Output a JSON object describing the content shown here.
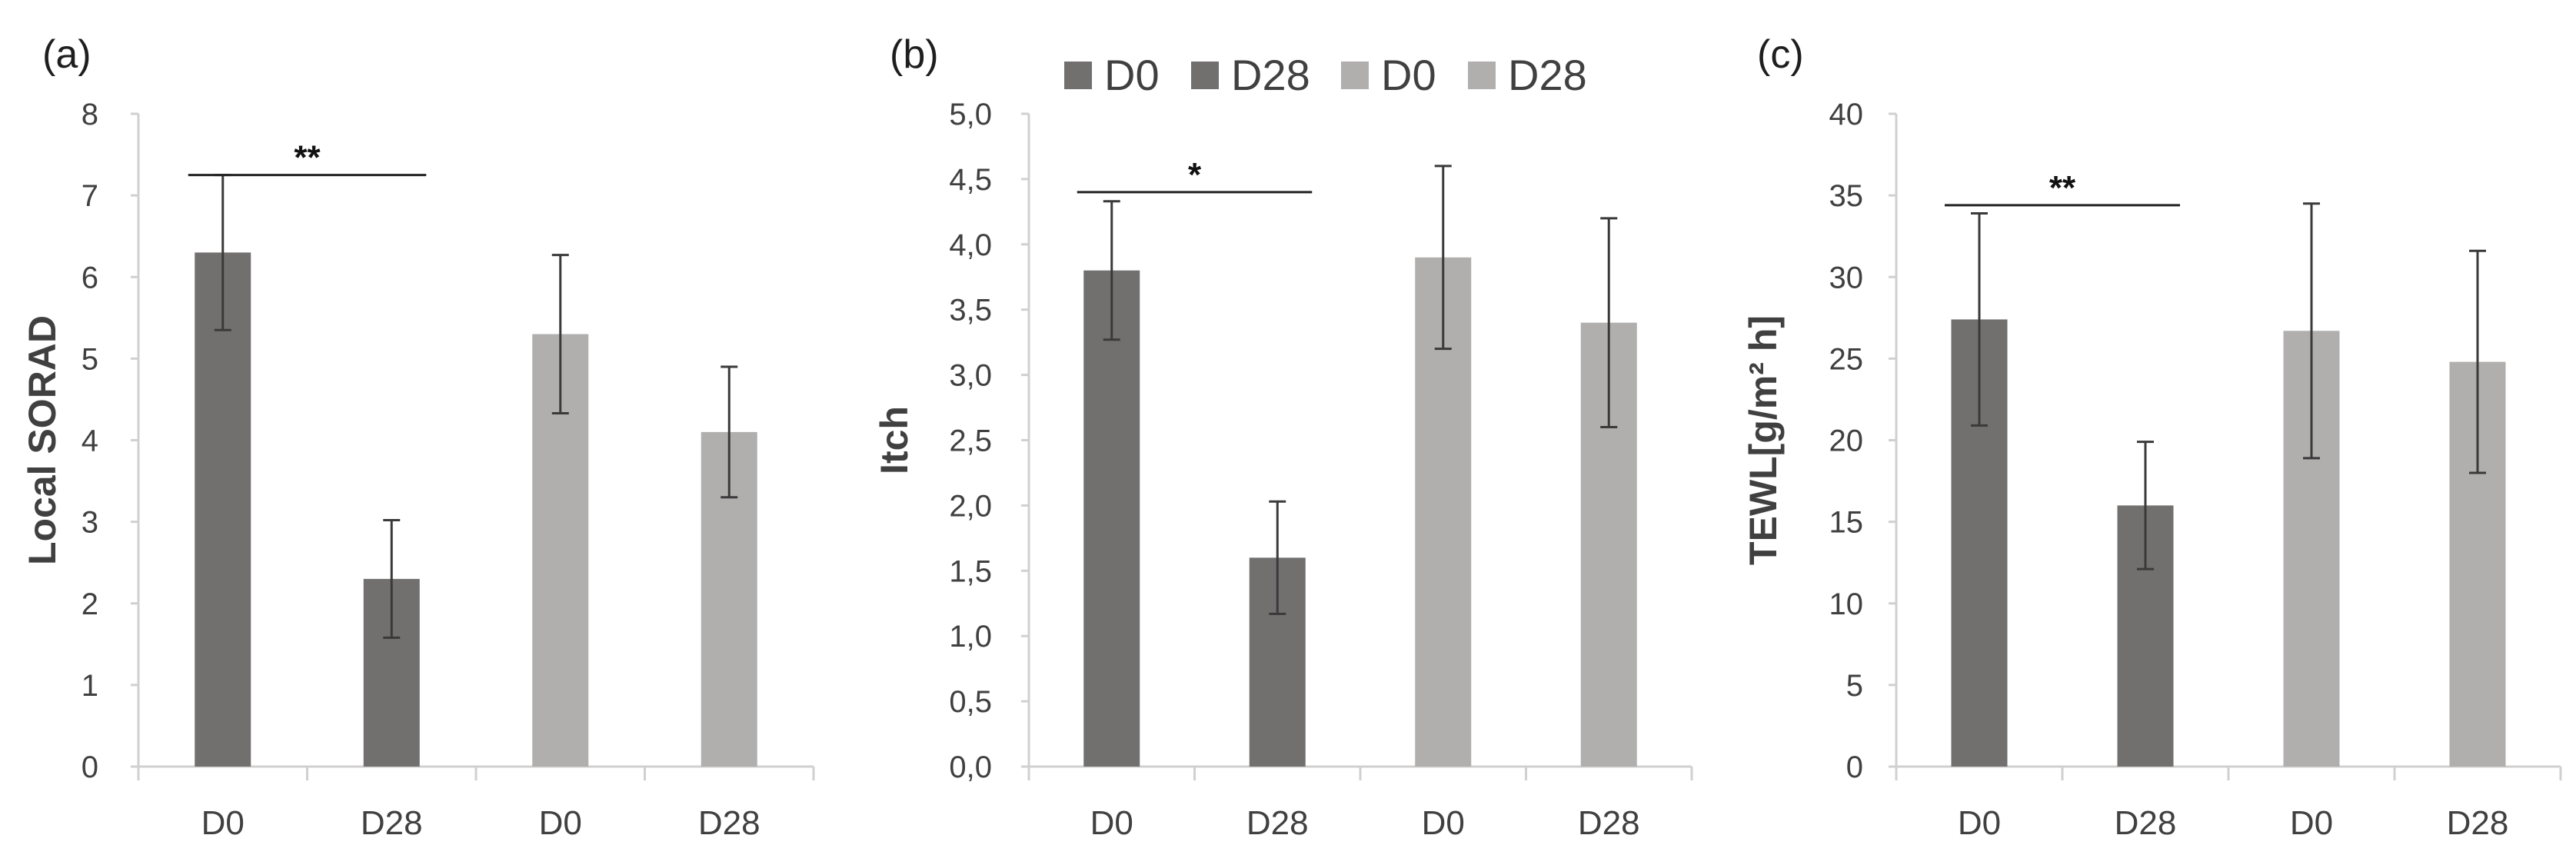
{
  "colors": {
    "dark": "#726f6f",
    "light": "#b1aeae",
    "axis": "#d0d0d0",
    "whisker": "#3a3a3a",
    "text": "#404040",
    "title": "#1e1e1e"
  },
  "legend": [
    {
      "label": "D0",
      "color": "#726f6f"
    },
    {
      "label": "D28",
      "color": "#726f6f"
    },
    {
      "label": "D0",
      "color": "#b1aeae"
    },
    {
      "label": "D28",
      "color": "#b1aeae"
    }
  ],
  "chart_data": [
    {
      "type": "bar",
      "panel_label": "(a)",
      "ylabel": "Local SORAD",
      "categories": [
        "D0",
        "D28",
        "D0",
        "D28"
      ],
      "values": [
        6.3,
        2.3,
        5.3,
        4.1
      ],
      "errors": [
        0.95,
        0.72,
        0.97,
        0.8
      ],
      "bar_colors": [
        "#726f6f",
        "#726f6f",
        "#b1aeae",
        "#b1aeae"
      ],
      "ylim": [
        0,
        8
      ],
      "yticks": [
        0,
        1,
        2,
        3,
        4,
        5,
        6,
        7,
        8
      ],
      "ytick_labels": [
        "0",
        "1",
        "2",
        "3",
        "4",
        "5",
        "6",
        "7",
        "8"
      ],
      "significance": {
        "label": "**",
        "from": 0,
        "to": 1,
        "y": 7.25
      }
    },
    {
      "type": "bar",
      "panel_label": "(b)",
      "ylabel": "Itch",
      "categories": [
        "D0",
        "D28",
        "D0",
        "D28"
      ],
      "values": [
        3.8,
        1.6,
        3.9,
        3.4
      ],
      "errors": [
        0.53,
        0.43,
        0.7,
        0.8
      ],
      "bar_colors": [
        "#726f6f",
        "#726f6f",
        "#b1aeae",
        "#b1aeae"
      ],
      "ylim": [
        0,
        5
      ],
      "yticks": [
        0,
        0.5,
        1,
        1.5,
        2,
        2.5,
        3,
        3.5,
        4,
        4.5,
        5
      ],
      "ytick_labels": [
        "0,0",
        "0,5",
        "1,0",
        "1,5",
        "2,0",
        "2,5",
        "3,0",
        "3,5",
        "4,0",
        "4,5",
        "5,0"
      ],
      "significance": {
        "label": "*",
        "from": 0,
        "to": 1,
        "y": 4.4
      }
    },
    {
      "type": "bar",
      "panel_label": "(c)",
      "ylabel": "TEWL[g/m² h]",
      "categories": [
        "D0",
        "D28",
        "D0",
        "D28"
      ],
      "values": [
        27.4,
        16.0,
        26.7,
        24.8
      ],
      "errors": [
        6.5,
        3.9,
        7.8,
        6.8
      ],
      "bar_colors": [
        "#726f6f",
        "#726f6f",
        "#b1aeae",
        "#b1aeae"
      ],
      "ylim": [
        0,
        40
      ],
      "yticks": [
        0,
        5,
        10,
        15,
        20,
        25,
        30,
        35,
        40
      ],
      "ytick_labels": [
        "0",
        "5",
        "10",
        "15",
        "20",
        "25",
        "30",
        "35",
        "40"
      ],
      "significance": {
        "label": "**",
        "from": 0,
        "to": 1,
        "y": 34.4
      }
    }
  ]
}
